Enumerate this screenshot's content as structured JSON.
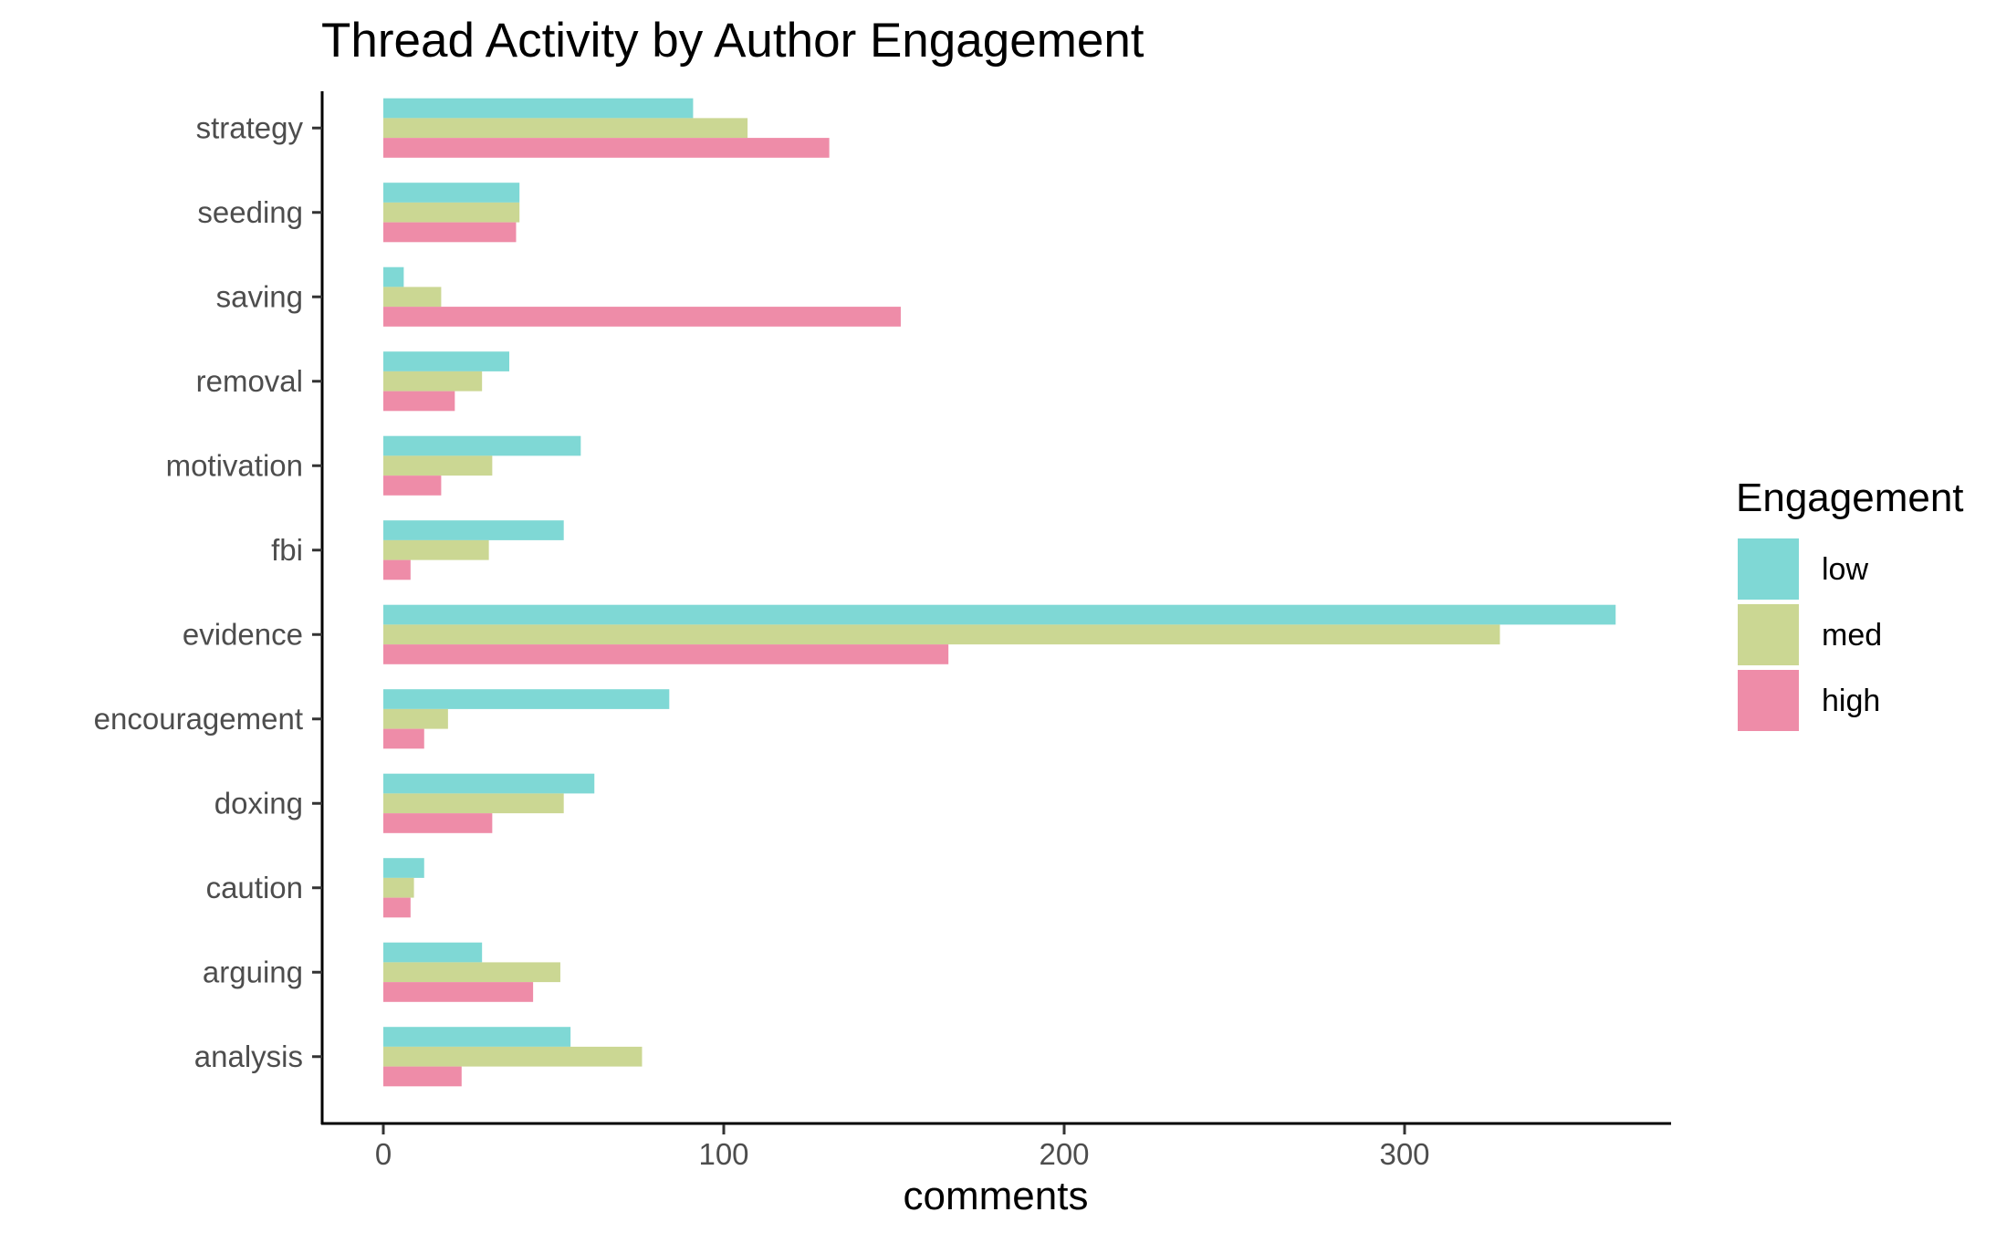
{
  "chart_data": {
    "type": "bar",
    "orientation": "horizontal",
    "title": "Thread Activity by Author Engagement",
    "xlabel": "comments",
    "ylabel": "",
    "xlim": [
      0,
      362
    ],
    "xticks": [
      0,
      100,
      200,
      300
    ],
    "grid": false,
    "legend": {
      "title": "Engagement",
      "placement": "right"
    },
    "categories": [
      "strategy",
      "seeding",
      "saving",
      "removal",
      "motivation",
      "fbi",
      "evidence",
      "encouragement",
      "doxing",
      "caution",
      "arguing",
      "analysis"
    ],
    "series": [
      {
        "name": "low",
        "color": "#7fd8d5",
        "values": [
          91,
          40,
          6,
          37,
          58,
          53,
          362,
          84,
          62,
          12,
          29,
          55
        ]
      },
      {
        "name": "med",
        "color": "#cbd793",
        "values": [
          107,
          40,
          17,
          29,
          32,
          31,
          328,
          19,
          53,
          9,
          52,
          76
        ]
      },
      {
        "name": "high",
        "color": "#ee8ca8",
        "values": [
          131,
          39,
          152,
          21,
          17,
          8,
          166,
          12,
          32,
          8,
          44,
          23
        ]
      }
    ]
  }
}
